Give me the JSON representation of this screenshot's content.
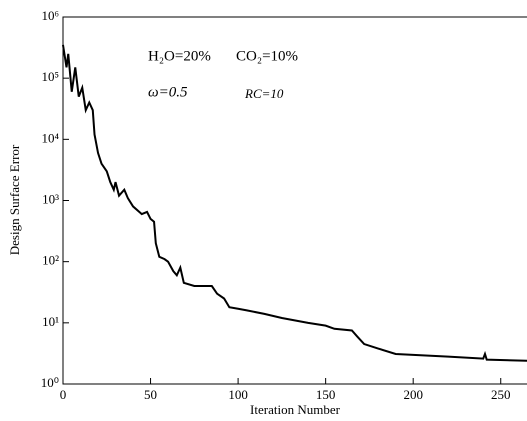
{
  "chart_data": {
    "type": "line",
    "log_y": true,
    "x_label": "Iteration Number",
    "y_label": "Design Surface Error",
    "annotations": [
      "H₂O=20%",
      "CO₂=10%",
      "ω=0.5",
      "RC=10"
    ],
    "x": [
      0,
      2,
      3,
      5,
      7,
      9,
      11,
      13,
      15,
      17,
      18,
      20,
      22,
      25,
      27,
      29,
      30,
      32,
      35,
      37,
      40,
      45,
      48,
      50,
      52,
      53,
      55,
      58,
      60,
      63,
      65,
      67,
      69,
      75,
      85,
      88,
      92,
      95,
      100,
      105,
      115,
      125,
      140,
      150,
      155,
      165,
      168,
      172,
      180,
      190,
      200,
      220,
      240,
      241,
      242,
      265
    ],
    "values": [
      350000,
      150000,
      250000,
      60000,
      150000,
      50000,
      70000,
      30000,
      40000,
      30000,
      12000,
      6000,
      4000,
      3000,
      2000,
      1500,
      2000,
      1200,
      1500,
      1100,
      800,
      600,
      650,
      500,
      450,
      200,
      120,
      110,
      100,
      70,
      60,
      80,
      45,
      40,
      40,
      30,
      25,
      18,
      17,
      16,
      14,
      12,
      10,
      9,
      8,
      7.5,
      6,
      4.5,
      3.8,
      3.1,
      3,
      2.8,
      2.6,
      3.1,
      2.5,
      2.4
    ],
    "color": "#000000",
    "xlim": [
      0,
      265
    ],
    "ylim": [
      1,
      1000000
    ],
    "xticks": [
      0,
      50,
      100,
      150,
      200,
      250
    ],
    "yticks": [
      {
        "value": 1,
        "label": "10⁰"
      },
      {
        "value": 10,
        "label": "10¹"
      },
      {
        "value": 100,
        "label": "10²"
      },
      {
        "value": 1000,
        "label": "10³"
      },
      {
        "value": 10000,
        "label": "10⁴"
      },
      {
        "value": 100000,
        "label": "10⁵"
      },
      {
        "value": 1000000,
        "label": "10⁶"
      }
    ]
  }
}
